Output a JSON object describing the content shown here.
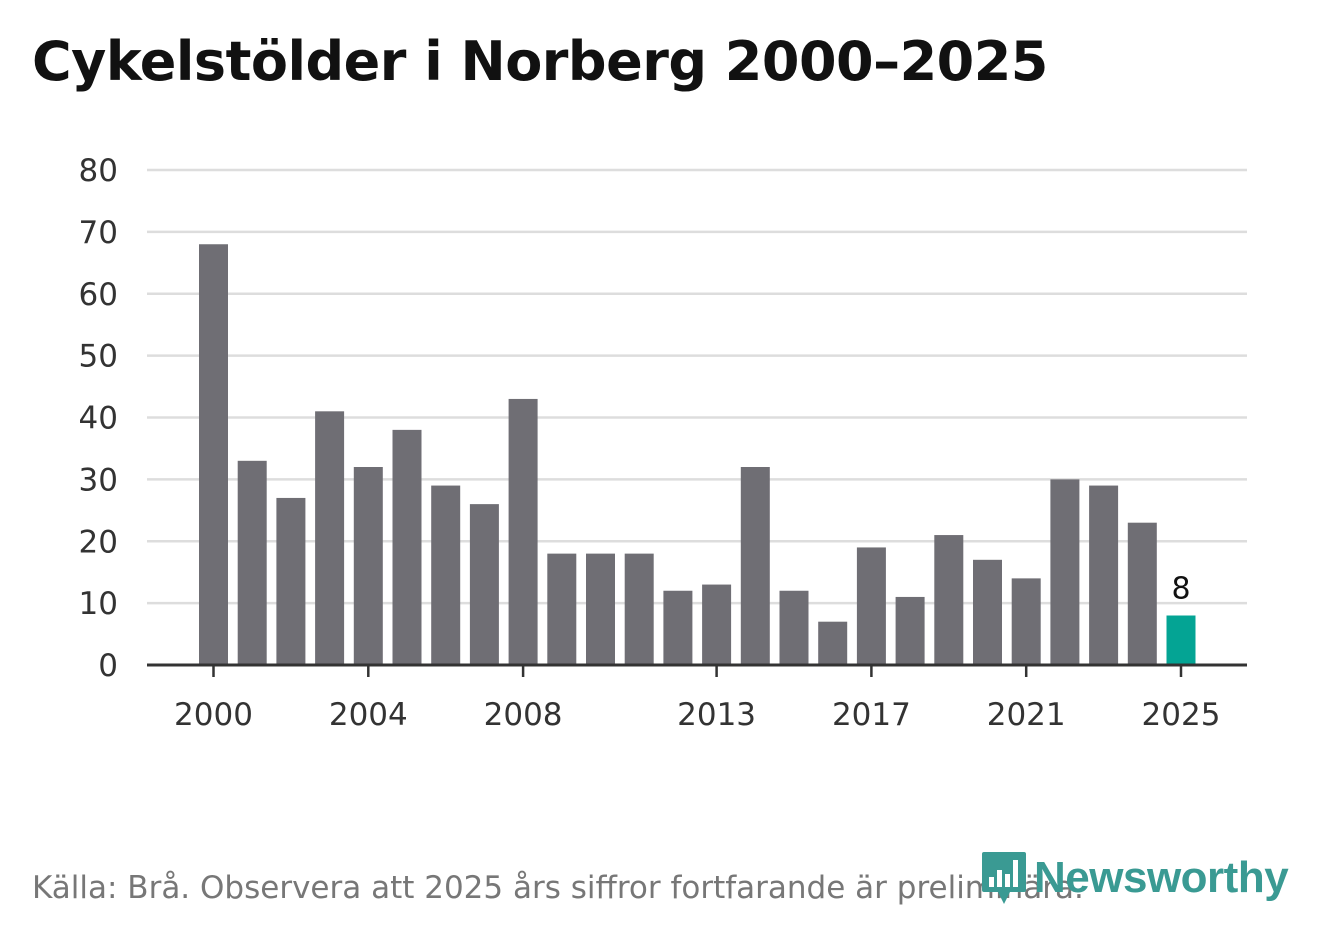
{
  "colors": {
    "bar": "#6f6e74",
    "highlight": "#04a494",
    "grid": "#dddddd",
    "axis": "#333333",
    "text": "#333333",
    "brand": "#3a9a93"
  },
  "footer": {
    "source": "Källa: Brå. Observera att 2025 års siffror fortfarande är preliminära."
  },
  "brand": {
    "name": "Newsworthy",
    "icon": "newsworthy-logo-icon"
  },
  "chart_data": {
    "type": "bar",
    "title": "Cykelstölder i Norberg 2000–2025",
    "xlabel": "",
    "ylabel": "",
    "ylim": [
      0,
      80
    ],
    "yticks": [
      0,
      10,
      20,
      30,
      40,
      50,
      60,
      70,
      80
    ],
    "xtick_labels": [
      "2000",
      "2004",
      "2008",
      "2013",
      "2017",
      "2021",
      "2025"
    ],
    "categories": [
      "2000",
      "2001",
      "2002",
      "2003",
      "2004",
      "2005",
      "2006",
      "2007",
      "2008",
      "2009",
      "2010",
      "2011",
      "2012",
      "2013",
      "2014",
      "2015",
      "2016",
      "2017",
      "2018",
      "2019",
      "2020",
      "2021",
      "2022",
      "2023",
      "2024",
      "2025"
    ],
    "values": [
      68,
      33,
      27,
      41,
      32,
      38,
      29,
      26,
      43,
      18,
      18,
      18,
      12,
      13,
      32,
      12,
      7,
      19,
      11,
      21,
      17,
      14,
      30,
      29,
      23,
      8
    ],
    "highlight": "2025",
    "data_labels": [
      {
        "category": "2025",
        "text": "8"
      }
    ],
    "grid": true,
    "legend": "none"
  }
}
